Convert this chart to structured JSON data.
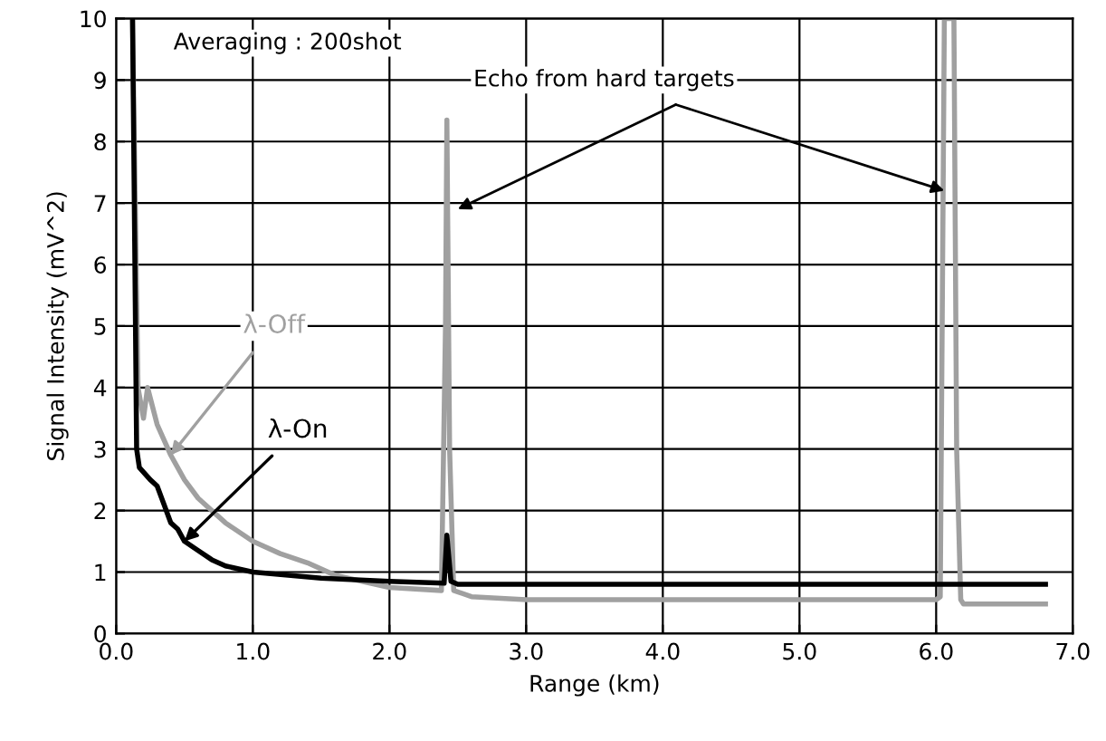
{
  "chart_data": {
    "type": "line",
    "xlabel": "Range (km)",
    "ylabel": "Signal Intensity (mV^2)",
    "annotations": [
      "Averaging : 200shot",
      {
        "text": "Echo from hard targets",
        "x": 2.5,
        "y": 6.9
      }
    ],
    "xlim": [
      0,
      7
    ],
    "ylim": [
      0,
      10
    ],
    "xticks": [
      {
        "value": 0,
        "label": "0.0"
      },
      {
        "value": 1,
        "label": "1.0"
      },
      {
        "value": 2,
        "label": "2.0"
      },
      {
        "value": 3,
        "label": "3.0"
      },
      {
        "value": 4,
        "label": "4.0"
      },
      {
        "value": 5,
        "label": "5.0"
      },
      {
        "value": 6,
        "label": "6.0"
      },
      {
        "value": 7,
        "label": "7.0"
      }
    ],
    "yticks": [
      0,
      1,
      2,
      3,
      4,
      5,
      6,
      7,
      8,
      9,
      10
    ],
    "grid": true,
    "legend": false,
    "marker": "none",
    "line_style": "solid",
    "series": [
      {
        "name": "λ-Off",
        "color": "#a0a0a0",
        "x": [
          0.12,
          0.14,
          0.16,
          0.2,
          0.23,
          0.3,
          0.4,
          0.5,
          0.6,
          0.7,
          0.8,
          1.0,
          1.2,
          1.4,
          1.6,
          1.8,
          2.0,
          2.38,
          2.41,
          2.42,
          2.44,
          2.47,
          2.6,
          3.0,
          4.0,
          5.0,
          6.0,
          6.03,
          6.06,
          6.13,
          6.15,
          6.18,
          6.2,
          6.8
        ],
        "values": [
          10,
          7,
          4,
          3.5,
          4.0,
          3.4,
          2.9,
          2.5,
          2.2,
          2.0,
          1.8,
          1.5,
          1.3,
          1.15,
          0.95,
          0.85,
          0.75,
          0.7,
          5.0,
          8.35,
          3.0,
          0.7,
          0.6,
          0.55,
          0.55,
          0.55,
          0.55,
          0.6,
          10,
          10,
          3.0,
          0.55,
          0.48,
          0.48
        ]
      },
      {
        "name": "λ-On",
        "color": "#000000",
        "x": [
          0.12,
          0.14,
          0.15,
          0.17,
          0.25,
          0.3,
          0.35,
          0.4,
          0.45,
          0.5,
          0.6,
          0.7,
          0.8,
          1.0,
          1.5,
          2.0,
          2.4,
          2.42,
          2.45,
          2.5,
          3.0,
          4.0,
          5.0,
          6.0,
          6.8
        ],
        "values": [
          10,
          5.4,
          3.0,
          2.7,
          2.5,
          2.4,
          2.1,
          1.8,
          1.7,
          1.5,
          1.35,
          1.2,
          1.1,
          1.0,
          0.9,
          0.85,
          0.82,
          1.6,
          0.85,
          0.8,
          0.8,
          0.8,
          0.8,
          0.8,
          0.8
        ]
      }
    ]
  }
}
